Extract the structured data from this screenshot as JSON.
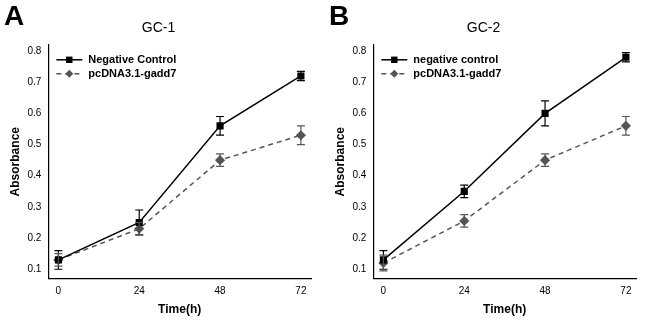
{
  "chart_data": [
    {
      "type": "line",
      "panel": "A",
      "title": "GC-1",
      "x_label": "Time(h)",
      "y_label": "Absorbance",
      "x": [
        0,
        24,
        48,
        72
      ],
      "xlim": [
        -3,
        75
      ],
      "xticks": [
        0,
        24,
        48,
        72
      ],
      "ylim": [
        0.07,
        0.82
      ],
      "yticks": [
        0.1,
        0.2,
        0.3,
        0.4,
        0.5,
        0.6,
        0.7,
        0.8
      ],
      "grid": false,
      "legend": "upper left",
      "series": [
        {
          "name": "Negative Control",
          "color": "#000000",
          "marker": "square",
          "line_style": "solid",
          "values": [
            0.13,
            0.25,
            0.56,
            0.72
          ],
          "errors": [
            0.03,
            0.04,
            0.03,
            0.015
          ]
        },
        {
          "name": "pcDNA3.1-gadd7",
          "color": "#555555",
          "marker": "diamond",
          "line_style": "dashed",
          "values": [
            0.13,
            0.23,
            0.45,
            0.53
          ],
          "errors": [
            0.02,
            0.02,
            0.02,
            0.03
          ]
        }
      ]
    },
    {
      "type": "line",
      "panel": "B",
      "title": "GC-2",
      "x_label": "Time(h)",
      "y_label": "Absorbance",
      "x": [
        0,
        24,
        48,
        72
      ],
      "xlim": [
        -3,
        75
      ],
      "xticks": [
        0,
        24,
        48,
        72
      ],
      "ylim": [
        0.07,
        0.82
      ],
      "yticks": [
        0.1,
        0.2,
        0.3,
        0.4,
        0.5,
        0.6,
        0.7,
        0.8
      ],
      "grid": false,
      "legend": "upper left",
      "series": [
        {
          "name": "negative control",
          "color": "#000000",
          "marker": "square",
          "line_style": "solid",
          "values": [
            0.13,
            0.35,
            0.6,
            0.78
          ],
          "errors": [
            0.03,
            0.02,
            0.04,
            0.015
          ]
        },
        {
          "name": "pcDNA3.1-gadd7",
          "color": "#555555",
          "marker": "diamond",
          "line_style": "dashed",
          "values": [
            0.12,
            0.255,
            0.45,
            0.56
          ],
          "errors": [
            0.025,
            0.02,
            0.02,
            0.03
          ]
        }
      ]
    }
  ]
}
